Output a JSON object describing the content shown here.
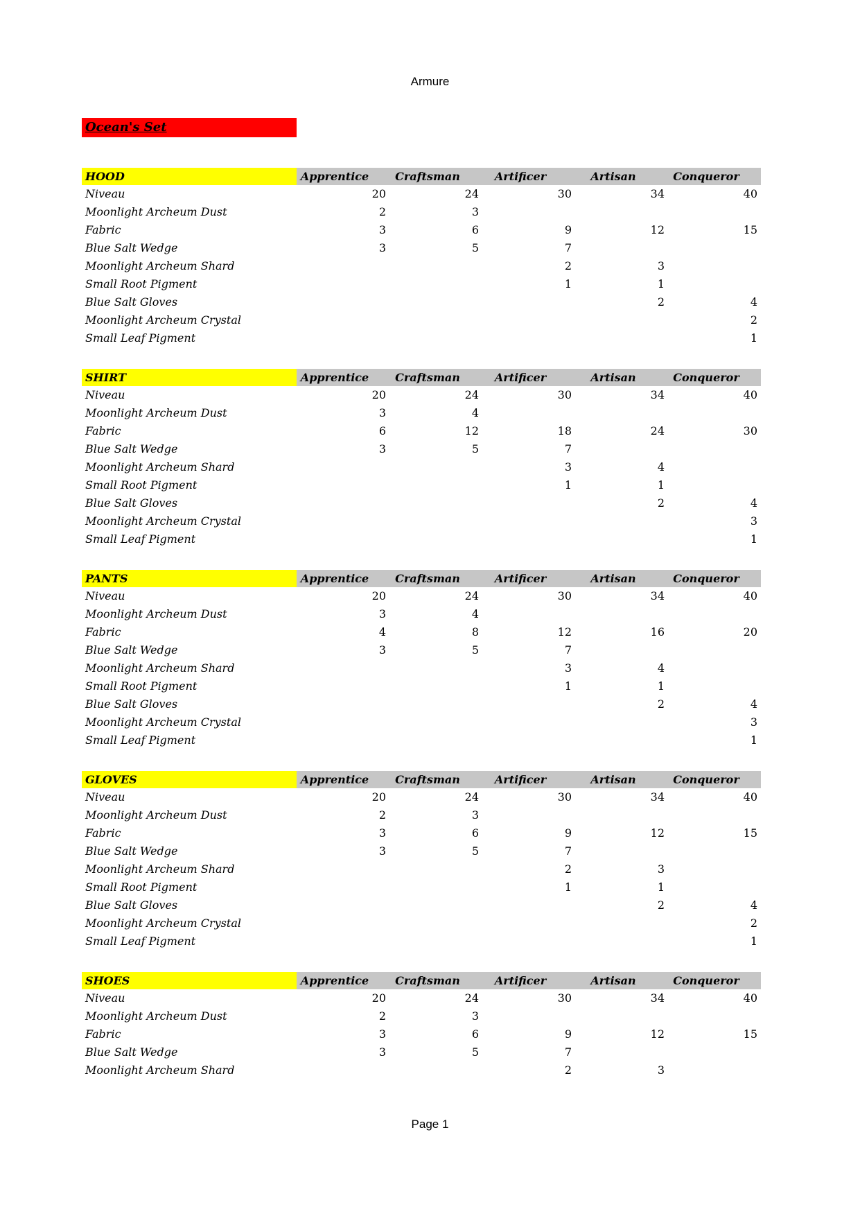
{
  "page": {
    "title": "Armure",
    "footer": "Page 1"
  },
  "banner": {
    "text": "Ocean's Set",
    "bg_color": "#ff0000"
  },
  "colors": {
    "section_bg": "#ffff00",
    "column_header_bg": "#c6c6c6",
    "banner_bg": "#ff0000"
  },
  "columns": [
    "Apprentice",
    "Craftsman",
    "Artificer",
    "Artisan",
    "Conqueror"
  ],
  "tables": [
    {
      "label": "HOOD",
      "rows": [
        {
          "label": "Niveau",
          "values": [
            "20",
            "24",
            "30",
            "34",
            "40"
          ]
        },
        {
          "label": "Moonlight Archeum Dust",
          "values": [
            "2",
            "3",
            "",
            "",
            ""
          ]
        },
        {
          "label": "Fabric",
          "values": [
            "3",
            "6",
            "9",
            "12",
            "15"
          ]
        },
        {
          "label": "Blue Salt Wedge",
          "values": [
            "3",
            "5",
            "7",
            "",
            ""
          ]
        },
        {
          "label": "Moonlight Archeum Shard",
          "values": [
            "",
            "",
            "2",
            "3",
            ""
          ]
        },
        {
          "label": "Small Root Pigment",
          "values": [
            "",
            "",
            "1",
            "1",
            ""
          ]
        },
        {
          "label": "Blue Salt Gloves",
          "values": [
            "",
            "",
            "",
            "2",
            "4"
          ]
        },
        {
          "label": "Moonlight Archeum Crystal",
          "values": [
            "",
            "",
            "",
            "",
            "2"
          ]
        },
        {
          "label": "Small Leaf Pigment",
          "values": [
            "",
            "",
            "",
            "",
            "1"
          ]
        }
      ]
    },
    {
      "label": "SHIRT",
      "rows": [
        {
          "label": "Niveau",
          "values": [
            "20",
            "24",
            "30",
            "34",
            "40"
          ]
        },
        {
          "label": "Moonlight Archeum Dust",
          "values": [
            "3",
            "4",
            "",
            "",
            ""
          ]
        },
        {
          "label": "Fabric",
          "values": [
            "6",
            "12",
            "18",
            "24",
            "30"
          ]
        },
        {
          "label": "Blue Salt Wedge",
          "values": [
            "3",
            "5",
            "7",
            "",
            ""
          ]
        },
        {
          "label": "Moonlight Archeum Shard",
          "values": [
            "",
            "",
            "3",
            "4",
            ""
          ]
        },
        {
          "label": "Small Root Pigment",
          "values": [
            "",
            "",
            "1",
            "1",
            ""
          ]
        },
        {
          "label": "Blue Salt Gloves",
          "values": [
            "",
            "",
            "",
            "2",
            "4"
          ]
        },
        {
          "label": "Moonlight Archeum Crystal",
          "values": [
            "",
            "",
            "",
            "",
            "3"
          ]
        },
        {
          "label": "Small Leaf Pigment",
          "values": [
            "",
            "",
            "",
            "",
            "1"
          ]
        }
      ]
    },
    {
      "label": "PANTS",
      "rows": [
        {
          "label": "Niveau",
          "values": [
            "20",
            "24",
            "30",
            "34",
            "40"
          ]
        },
        {
          "label": "Moonlight Archeum Dust",
          "values": [
            "3",
            "4",
            "",
            "",
            ""
          ]
        },
        {
          "label": "Fabric",
          "values": [
            "4",
            "8",
            "12",
            "16",
            "20"
          ]
        },
        {
          "label": "Blue Salt Wedge",
          "values": [
            "3",
            "5",
            "7",
            "",
            ""
          ]
        },
        {
          "label": "Moonlight Archeum Shard",
          "values": [
            "",
            "",
            "3",
            "4",
            ""
          ]
        },
        {
          "label": "Small Root Pigment",
          "values": [
            "",
            "",
            "1",
            "1",
            ""
          ]
        },
        {
          "label": "Blue Salt Gloves",
          "values": [
            "",
            "",
            "",
            "2",
            "4"
          ]
        },
        {
          "label": "Moonlight Archeum Crystal",
          "values": [
            "",
            "",
            "",
            "",
            "3"
          ]
        },
        {
          "label": "Small Leaf Pigment",
          "values": [
            "",
            "",
            "",
            "",
            "1"
          ]
        }
      ]
    },
    {
      "label": "GLOVES",
      "rows": [
        {
          "label": "Niveau",
          "values": [
            "20",
            "24",
            "30",
            "34",
            "40"
          ]
        },
        {
          "label": "Moonlight Archeum Dust",
          "values": [
            "2",
            "3",
            "",
            "",
            ""
          ]
        },
        {
          "label": "Fabric",
          "values": [
            "3",
            "6",
            "9",
            "12",
            "15"
          ]
        },
        {
          "label": "Blue Salt Wedge",
          "values": [
            "3",
            "5",
            "7",
            "",
            ""
          ]
        },
        {
          "label": "Moonlight Archeum Shard",
          "values": [
            "",
            "",
            "2",
            "3",
            ""
          ]
        },
        {
          "label": "Small Root Pigment",
          "values": [
            "",
            "",
            "1",
            "1",
            ""
          ]
        },
        {
          "label": "Blue Salt Gloves",
          "values": [
            "",
            "",
            "",
            "2",
            "4"
          ]
        },
        {
          "label": "Moonlight Archeum Crystal",
          "values": [
            "",
            "",
            "",
            "",
            "2"
          ]
        },
        {
          "label": "Small Leaf Pigment",
          "values": [
            "",
            "",
            "",
            "",
            "1"
          ]
        }
      ]
    },
    {
      "label": "SHOES",
      "rows": [
        {
          "label": "Niveau",
          "values": [
            "20",
            "24",
            "30",
            "34",
            "40"
          ]
        },
        {
          "label": "Moonlight Archeum Dust",
          "values": [
            "2",
            "3",
            "",
            "",
            ""
          ]
        },
        {
          "label": "Fabric",
          "values": [
            "3",
            "6",
            "9",
            "12",
            "15"
          ]
        },
        {
          "label": "Blue Salt Wedge",
          "values": [
            "3",
            "5",
            "7",
            "",
            ""
          ]
        },
        {
          "label": "Moonlight Archeum Shard",
          "values": [
            "",
            "",
            "2",
            "3",
            ""
          ]
        }
      ]
    }
  ]
}
